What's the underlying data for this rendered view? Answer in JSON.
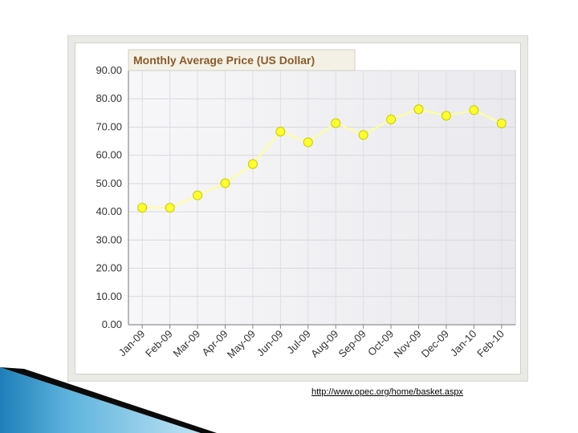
{
  "chart_data": {
    "type": "line",
    "title": "Monthly Average Price (US Dollar)",
    "categories": [
      "Jan-09",
      "Feb-09",
      "Mar-09",
      "Apr-09",
      "May-09",
      "Jun-09",
      "Jul-09",
      "Aug-09",
      "Sep-09",
      "Oct-09",
      "Nov-09",
      "Dec-09",
      "Jan-10",
      "Feb-10"
    ],
    "series": [
      {
        "values": [
          41.4,
          41.4,
          45.8,
          50.1,
          56.9,
          68.4,
          64.6,
          71.4,
          67.2,
          72.7,
          76.3,
          74.0,
          76.0,
          71.3
        ]
      }
    ],
    "y_ticks": [
      "0.00",
      "10.00",
      "20.00",
      "30.00",
      "40.00",
      "50.00",
      "60.00",
      "70.00",
      "80.00",
      "90.00"
    ],
    "ylim": [
      0,
      90
    ],
    "grid": true,
    "legend": "none",
    "colors": {
      "line": "#ffff99",
      "marker_fill": "#ffff33",
      "marker_stroke": "#c8c800",
      "title_tab": "#f3f1e6",
      "title_text": "#8a5a2b"
    }
  },
  "footer": {
    "source_link": "http://www.opec.org/home/basket.aspx"
  }
}
